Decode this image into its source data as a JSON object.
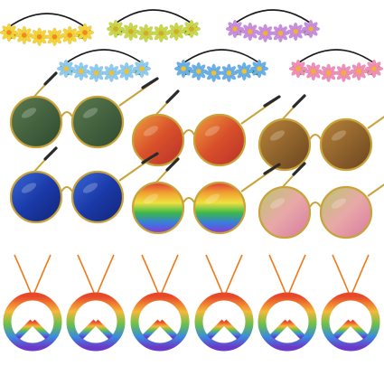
{
  "colors": {
    "background": "#ffffff",
    "band": "#1a1a1a",
    "frame_gold": "#c9a23a",
    "arm": "#2a2a2a",
    "cord": "#f07a1a"
  },
  "headbands": [
    {
      "name": "headband-yellow",
      "petal": "#f5d33a",
      "center": "#f08a1a",
      "leaf": "#7a9a2a"
    },
    {
      "name": "headband-lime",
      "petal": "#c8d84a",
      "center": "#d8a82a",
      "leaf": "#6a8a2a"
    },
    {
      "name": "headband-purple",
      "petal": "#c98ee0",
      "center": "#f0b030",
      "leaf": "#7a9a3a"
    },
    {
      "name": "headband-skyblue",
      "petal": "#8ecbf0",
      "center": "#f0c030",
      "leaf": "#5a9a3a"
    },
    {
      "name": "headband-blue",
      "petal": "#6ab0e8",
      "center": "#f0c030",
      "leaf": "#3a7a3a"
    },
    {
      "name": "headband-pink",
      "petal": "#f08fb8",
      "center": "#f0b030",
      "leaf": "#7aa03a"
    }
  ],
  "sunglasses": [
    {
      "name": "sunglasses-green",
      "lens": "green"
    },
    {
      "name": "sunglasses-orange-mirror",
      "lens": "orange"
    },
    {
      "name": "sunglasses-brown",
      "lens": "brown"
    },
    {
      "name": "sunglasses-blue-mirror",
      "lens": "blue"
    },
    {
      "name": "sunglasses-rainbow",
      "lens": "rainbow"
    },
    {
      "name": "sunglasses-pink-gold",
      "lens": "pinkgold"
    }
  ],
  "necklaces": [
    {
      "name": "peace-necklace-1"
    },
    {
      "name": "peace-necklace-2"
    },
    {
      "name": "peace-necklace-3"
    },
    {
      "name": "peace-necklace-4"
    },
    {
      "name": "peace-necklace-5"
    },
    {
      "name": "peace-necklace-6"
    }
  ]
}
